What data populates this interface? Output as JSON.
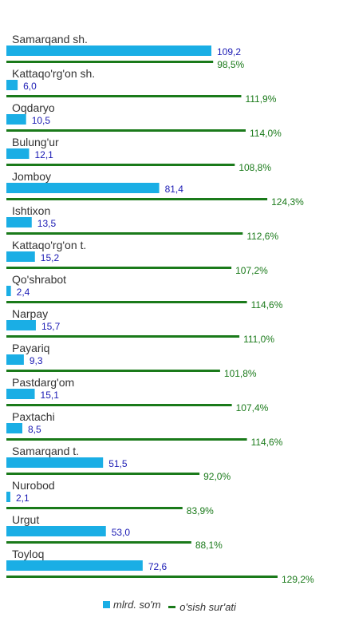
{
  "chart_data": {
    "type": "bar",
    "orientation": "horizontal",
    "categories": [
      "Samarqand sh.",
      "Kattaqo'rg'on sh.",
      "Oqdaryo",
      "Bulung'ur",
      "Jomboy",
      "Ishtixon",
      "Kattaqo'rg'on t.",
      "Qo'shrabot",
      "Narpay",
      "Payariq",
      "Pastdarg'om",
      "Paxtachi",
      "Samarqand t.",
      "Nurobod",
      "Urgut",
      "Toyloq"
    ],
    "series": [
      {
        "name": "mlrd. so'm",
        "values": [
          109.2,
          6.0,
          10.5,
          12.1,
          81.4,
          13.5,
          15.2,
          2.4,
          15.7,
          9.3,
          15.1,
          8.5,
          51.5,
          2.1,
          53.0,
          72.6
        ],
        "labels": [
          "109,2",
          "6,0",
          "10,5",
          "12,1",
          "81,4",
          "13,5",
          "15,2",
          "2,4",
          "15,7",
          "9,3",
          "15,1",
          "8,5",
          "51,5",
          "2,1",
          "53,0",
          "72,6"
        ]
      },
      {
        "name": "o'sish sur'ati",
        "values": [
          98.5,
          111.9,
          114.0,
          108.8,
          124.3,
          112.6,
          107.2,
          114.6,
          111.0,
          101.8,
          107.4,
          114.6,
          92.0,
          83.9,
          88.1,
          129.2
        ],
        "labels": [
          "98,5%",
          "111,9%",
          "114,0%",
          "108,8%",
          "124,3%",
          "112,6%",
          "107,2%",
          "114,6%",
          "111,0%",
          "101,8%",
          "107,4%",
          "114,6%",
          "92,0%",
          "83,9%",
          "88,1%",
          "129,2%"
        ]
      }
    ],
    "grid": false,
    "legend_position": "bottom",
    "colors": {
      "bar": "#1AAEE5",
      "line": "#1A7A1A",
      "bar_label": "#1A1AB4",
      "line_label": "#1A7A1A",
      "category": "#333333"
    }
  }
}
